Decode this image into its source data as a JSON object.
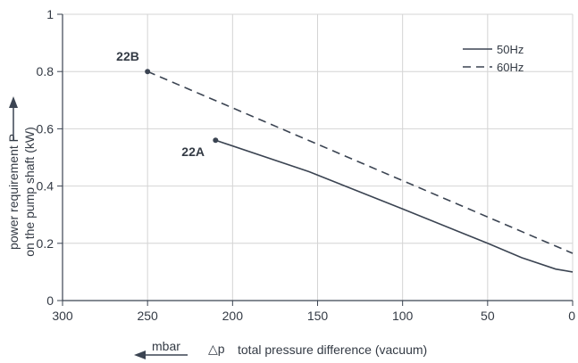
{
  "chart_data": {
    "type": "line",
    "x_reversed": true,
    "xlim": [
      300,
      0
    ],
    "ylim": [
      0,
      1
    ],
    "x_ticks": [
      "300",
      "250",
      "200",
      "150",
      "100",
      "50",
      "0"
    ],
    "x_tick_values": [
      300,
      250,
      200,
      150,
      100,
      50,
      0
    ],
    "y_ticks": [
      "0",
      "0.2",
      "0.4",
      "0.6",
      "0.8",
      "1"
    ],
    "y_tick_values": [
      0,
      0.2,
      0.4,
      0.6,
      0.8,
      1
    ],
    "grid": true,
    "legend_position": "top-right",
    "ylabel_line1": "power requirement P",
    "ylabel_line2": "on the pump shaft (kW)",
    "xlabel_unit": "mbar",
    "xlabel_symbol": "△p",
    "xlabel": "total pressure difference (vacuum)",
    "series": [
      {
        "name": "50Hz",
        "style": "solid",
        "point_label": "22A",
        "x": [
          210,
          155,
          100,
          50,
          30,
          10,
          0
        ],
        "y": [
          0.56,
          0.45,
          0.32,
          0.2,
          0.15,
          0.11,
          0.1
        ]
      },
      {
        "name": "60Hz",
        "style": "dashed",
        "point_label": "22B",
        "x": [
          250,
          0
        ],
        "y": [
          0.8,
          0.165
        ]
      }
    ],
    "colors": {
      "line": "#3b4452",
      "grid": "#d4d4d4",
      "text": "#333a44"
    }
  }
}
